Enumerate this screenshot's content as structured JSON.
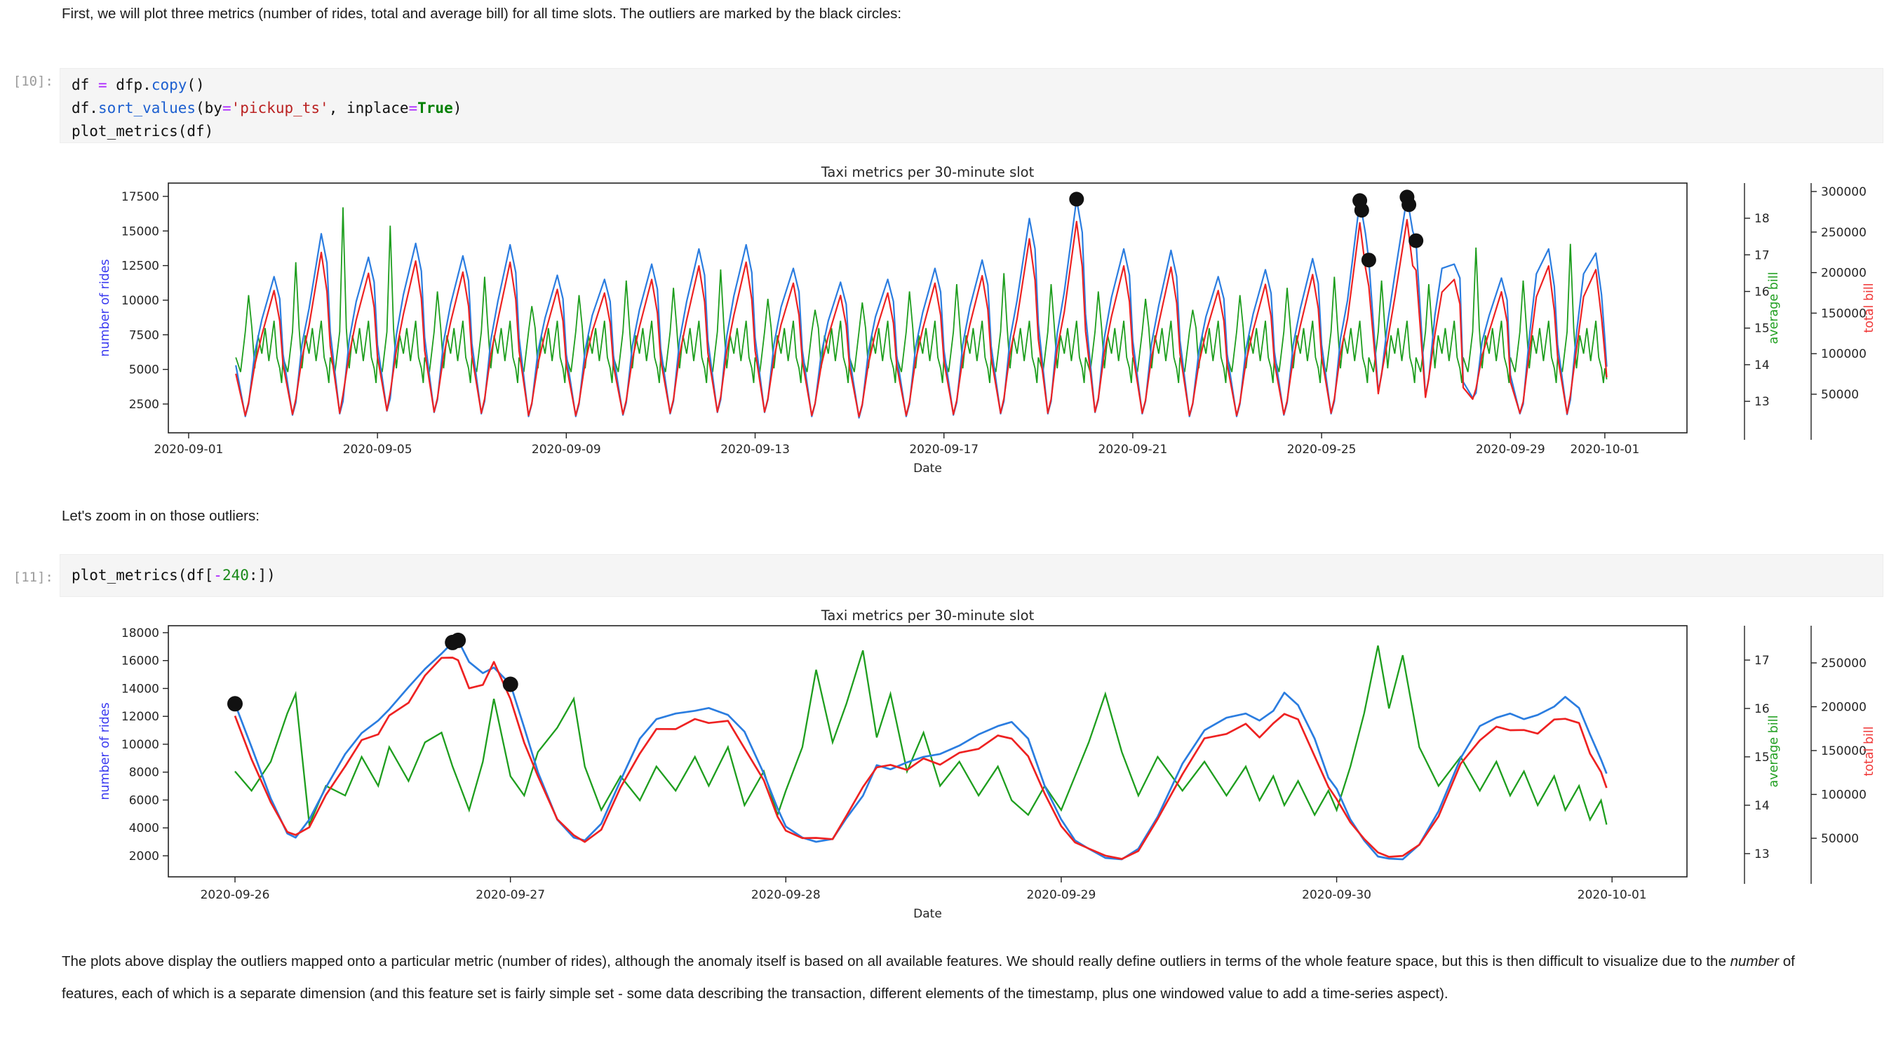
{
  "notebook": {
    "markdown_top": "First, we will plot three metrics (number of rides, total and average bill) for all time slots. The outliers are marked by the black circles:",
    "markdown_mid": "Let's zoom in on those outliers:",
    "paragraph": {
      "part1": "The plots above display the outliers mapped onto a particular metric (number of rides), although the anomaly itself is based on all available features. We should really define outliers in terms of the whole feature space, but this is then difficult to visualize due to the ",
      "italic": "number",
      "part2": " of features, each of which is a separate dimension (and this feature set is fairly simple set - some data describing the transaction, different elements of the timestamp, plus one windowed value to add a time-series aspect)."
    },
    "cells": [
      {
        "prompt": "[10]:",
        "lines": [
          [
            {
              "t": "df ",
              "c": "p"
            },
            {
              "t": "=",
              "c": "op"
            },
            {
              "t": " dfp.",
              "c": "p"
            },
            {
              "t": "copy",
              "c": "fn"
            },
            {
              "t": "()",
              "c": "p"
            }
          ],
          [
            {
              "t": "df.",
              "c": "p"
            },
            {
              "t": "sort_values",
              "c": "fn"
            },
            {
              "t": "(by",
              "c": "p"
            },
            {
              "t": "=",
              "c": "op"
            },
            {
              "t": "'pickup_ts'",
              "c": "s"
            },
            {
              "t": ", inplace",
              "c": "p"
            },
            {
              "t": "=",
              "c": "op"
            },
            {
              "t": "True",
              "c": "kw"
            },
            {
              "t": ")",
              "c": "p"
            }
          ],
          [
            {
              "t": "plot_metrics(df)",
              "c": "p"
            }
          ]
        ]
      },
      {
        "prompt": "[11]:",
        "lines": [
          [
            {
              "t": "plot_metrics(df[",
              "c": "p"
            },
            {
              "t": "-",
              "c": "op"
            },
            {
              "t": "240",
              "c": "n"
            },
            {
              "t": ":])",
              "c": "p"
            }
          ]
        ]
      }
    ]
  },
  "chart_data": [
    {
      "type": "line",
      "title": "Taxi metrics per 30-minute slot",
      "xlabel": "Date",
      "series_labels": {
        "rides": "number of rides",
        "avg": "average bill",
        "total": "total bill"
      },
      "colors": {
        "rides": "#2b7de0",
        "avg": "#1e9e1e",
        "total": "#ee2222",
        "outlier": "#111111",
        "tick": "#262626"
      },
      "x_unit": "days since 2020-09-01 00:00",
      "xlim": [
        -0.43,
        31.74
      ],
      "x_ticks": [
        {
          "o": 0,
          "label": "2020-09-01"
        },
        {
          "o": 4,
          "label": "2020-09-05"
        },
        {
          "o": 8,
          "label": "2020-09-09"
        },
        {
          "o": 12,
          "label": "2020-09-13"
        },
        {
          "o": 16,
          "label": "2020-09-17"
        },
        {
          "o": 20,
          "label": "2020-09-21"
        },
        {
          "o": 24,
          "label": "2020-09-25"
        },
        {
          "o": 28,
          "label": "2020-09-29"
        },
        {
          "o": 30,
          "label": "2020-10-01"
        }
      ],
      "rides_ticks": [
        2500,
        5000,
        7500,
        10000,
        12500,
        15000,
        17500
      ],
      "rides_ylim": [
        420,
        18460
      ],
      "avg_ticks": [
        13,
        14,
        15,
        16,
        17,
        18
      ],
      "avg_ylim": [
        12.14,
        18.96
      ],
      "total_ticks": [
        50000,
        100000,
        150000,
        200000,
        250000,
        300000
      ],
      "total_ylim": [
        2400,
        310400
      ],
      "total_rule": "total_bill = number_of_rides x average_bill (red line derived pointwise)",
      "sample_offsets_rides": [
        0,
        0.2,
        0.27,
        0.4,
        0.55,
        0.81,
        0.93
      ],
      "sample_offsets_avg": [
        0,
        0.1,
        0.2,
        0.27,
        0.34,
        0.4,
        0.47,
        0.55,
        0.62,
        0.7,
        0.81,
        0.87,
        0.93,
        0.97
      ],
      "avg_day_template": [
        14.2,
        13.8,
        14.9,
        null,
        15.0,
        13.9,
        14.8,
        14.3,
        15.0,
        14.1,
        15.2,
        14.2,
        13.9,
        13.5
      ],
      "avg_index_for_rides": [
        0,
        2,
        3,
        5,
        7,
        10,
        12
      ],
      "days": [
        {
          "date": "2020-09-02",
          "o": 1,
          "rides": [
            5300,
            1600,
            2500,
            6200,
            8600,
            11700,
            10100
          ],
          "avg_spike": 15.9
        },
        {
          "date": "2020-09-03",
          "o": 2,
          "rides": [
            6100,
            1700,
            2600,
            6800,
            9400,
            14800,
            12700
          ],
          "avg_spike": 16.8
        },
        {
          "date": "2020-09-04",
          "o": 3,
          "rides": [
            7700,
            1800,
            2700,
            7100,
            9900,
            13100,
            11300
          ],
          "avg_spike": 18.3
        },
        {
          "date": "2020-09-05",
          "o": 4,
          "rides": [
            6800,
            2000,
            2900,
            7500,
            10400,
            14100,
            12100
          ],
          "avg_spike": 17.8
        },
        {
          "date": "2020-09-06",
          "o": 5,
          "rides": [
            7300,
            1900,
            2800,
            7000,
            9700,
            13200,
            11400
          ],
          "avg_spike": 16.0
        },
        {
          "date": "2020-09-07",
          "o": 6,
          "rides": [
            6900,
            1800,
            2700,
            7100,
            9900,
            14000,
            12000
          ],
          "avg_spike": 16.4
        },
        {
          "date": "2020-09-08",
          "o": 7,
          "rides": [
            7300,
            1600,
            2500,
            6300,
            8700,
            11800,
            10100
          ],
          "avg_spike": 15.6
        },
        {
          "date": "2020-09-09",
          "o": 8,
          "rides": [
            6100,
            1600,
            2500,
            6400,
            8900,
            11500,
            9900
          ],
          "avg_spike": 15.9
        },
        {
          "date": "2020-09-10",
          "o": 9,
          "rides": [
            6000,
            1700,
            2600,
            6700,
            9300,
            12600,
            10800
          ],
          "avg_spike": 16.3
        },
        {
          "date": "2020-09-11",
          "o": 10,
          "rides": [
            6500,
            1800,
            2700,
            7100,
            9900,
            13700,
            11800
          ],
          "avg_spike": 16.1
        },
        {
          "date": "2020-09-12",
          "o": 11,
          "rides": [
            7100,
            1900,
            2800,
            7400,
            10300,
            14000,
            12000
          ],
          "avg_spike": 16.6
        },
        {
          "date": "2020-09-13",
          "o": 12,
          "rides": [
            7300,
            1900,
            2800,
            6800,
            9500,
            12300,
            10600
          ],
          "avg_spike": 15.8
        },
        {
          "date": "2020-09-14",
          "o": 13,
          "rides": [
            6400,
            1600,
            2500,
            6100,
            8500,
            11300,
            9700
          ],
          "avg_spike": 15.5
        },
        {
          "date": "2020-09-15",
          "o": 14,
          "rides": [
            5900,
            1500,
            2400,
            6300,
            8800,
            11500,
            9900
          ],
          "avg_spike": 15.7
        },
        {
          "date": "2020-09-16",
          "o": 15,
          "rides": [
            6000,
            1600,
            2500,
            6600,
            9100,
            12300,
            10600
          ],
          "avg_spike": 16.0
        },
        {
          "date": "2020-09-17",
          "o": 16,
          "rides": [
            6400,
            1700,
            2600,
            6800,
            9500,
            12900,
            11100
          ],
          "avg_spike": 16.2
        },
        {
          "date": "2020-09-18",
          "o": 17,
          "rides": [
            6700,
            1800,
            2700,
            7200,
            10000,
            15900,
            13700
          ],
          "avg_spike": 16.5
        },
        {
          "date": "2020-09-19",
          "o": 18,
          "rides": [
            8300,
            1800,
            2700,
            7600,
            10600,
            17300,
            14900
          ],
          "avg_spike": 16.2
        },
        {
          "date": "2020-09-20",
          "o": 19,
          "rides": [
            9000,
            1900,
            2800,
            7300,
            10200,
            13700,
            11800
          ],
          "avg_spike": 16.0
        },
        {
          "date": "2020-09-21",
          "o": 20,
          "rides": [
            7100,
            1800,
            2700,
            6900,
            9600,
            13600,
            11700
          ],
          "avg_spike": 15.8
        },
        {
          "date": "2020-09-22",
          "o": 21,
          "rides": [
            7100,
            1600,
            2500,
            6300,
            8800,
            11700,
            10100
          ],
          "avg_spike": 15.5
        },
        {
          "date": "2020-09-23",
          "o": 22,
          "rides": [
            6100,
            1600,
            2500,
            6500,
            9000,
            12200,
            10500
          ],
          "avg_spike": 15.9
        },
        {
          "date": "2020-09-24",
          "o": 23,
          "rides": [
            6300,
            1700,
            2600,
            6800,
            9400,
            13000,
            11200
          ],
          "avg_spike": 16.1
        },
        {
          "date": "2020-09-25",
          "o": 24,
          "rides": [
            6800,
            1800,
            2700,
            7200,
            10000,
            17200,
            14800
          ],
          "avg_spike": 16.4
        },
        {
          "date": "2020-09-26",
          "o": 25,
          "rides": [
            12900,
            3400,
            4600,
            8400,
            11800,
            17450,
            15000
          ],
          "avg_spike": 16.3
        },
        {
          "date": "2020-09-27",
          "o": 26,
          "rides": [
            14300,
            3100,
            4300,
            8900,
            12300,
            12600,
            11600
          ],
          "avg_spike": 16.2
        },
        {
          "date": "2020-09-28",
          "o": 27,
          "rides": [
            4100,
            2950,
            3300,
            7000,
            8900,
            11600,
            10000
          ],
          "avg_spike": 17.2
        },
        {
          "date": "2020-09-29",
          "o": 28,
          "rides": [
            4600,
            1800,
            2500,
            7300,
            11900,
            13700,
            11000
          ],
          "avg_spike": 16.3
        },
        {
          "date": "2020-09-30",
          "o": 29,
          "rides": [
            6800,
            1750,
            2800,
            7600,
            11900,
            13400,
            10400
          ],
          "avg_spike": 17.3
        }
      ],
      "tail": [
        {
          "o": 30,
          "rides": 7200,
          "avg": 13.9
        },
        {
          "o": 30.04,
          "rides": 5200,
          "avg": 13.6
        }
      ],
      "outliers": [
        {
          "o": 18.81,
          "rides": 17300
        },
        {
          "o": 24.81,
          "rides": 17200
        },
        {
          "o": 24.85,
          "rides": 16500
        },
        {
          "o": 25.0,
          "rides": 12900
        },
        {
          "o": 25.81,
          "rides": 17450
        },
        {
          "o": 25.85,
          "rides": 16900
        },
        {
          "o": 26.0,
          "rides": 14300
        }
      ]
    },
    {
      "type": "line",
      "title": "Taxi metrics per 30-minute slot",
      "xlabel": "Date",
      "series_labels": {
        "rides": "number of rides",
        "avg": "average bill",
        "total": "total bill"
      },
      "colors": {
        "rides": "#2b7de0",
        "avg": "#1e9e1e",
        "total": "#ee2222",
        "outlier": "#111111",
        "tick": "#262626"
      },
      "x_unit": "days since 2020-09-26 00:00",
      "xlim": [
        -0.242,
        5.272
      ],
      "x_ticks": [
        {
          "o": 0,
          "label": "2020-09-26"
        },
        {
          "o": 1,
          "label": "2020-09-27"
        },
        {
          "o": 2,
          "label": "2020-09-28"
        },
        {
          "o": 3,
          "label": "2020-09-29"
        },
        {
          "o": 4,
          "label": "2020-09-30"
        },
        {
          "o": 5,
          "label": "2020-10-01"
        }
      ],
      "rides_ticks": [
        2000,
        4000,
        6000,
        8000,
        10000,
        12000,
        14000,
        16000,
        18000
      ],
      "rides_ylim": [
        490,
        18500
      ],
      "avg_ticks": [
        13,
        14,
        15,
        16,
        17
      ],
      "avg_ylim": [
        12.52,
        17.71
      ],
      "total_ticks": [
        50000,
        100000,
        150000,
        200000,
        250000
      ],
      "total_ylim": [
        6000,
        292400
      ],
      "total_rule": "total_bill = number_of_rides x average_bill (red line derived pointwise)",
      "x": [
        0.0,
        0.06,
        0.13,
        0.19,
        0.22,
        0.27,
        0.33,
        0.4,
        0.46,
        0.52,
        0.56,
        0.63,
        0.69,
        0.75,
        0.79,
        0.81,
        0.85,
        0.9,
        0.94,
        1.0,
        1.05,
        1.1,
        1.17,
        1.23,
        1.27,
        1.33,
        1.4,
        1.47,
        1.53,
        1.6,
        1.67,
        1.72,
        1.79,
        1.85,
        1.92,
        1.97,
        2.0,
        2.06,
        2.11,
        2.17,
        2.22,
        2.28,
        2.33,
        2.38,
        2.44,
        2.5,
        2.56,
        2.63,
        2.7,
        2.77,
        2.82,
        2.88,
        2.94,
        3.0,
        3.05,
        3.1,
        3.16,
        3.22,
        3.28,
        3.35,
        3.44,
        3.52,
        3.6,
        3.67,
        3.72,
        3.77,
        3.81,
        3.86,
        3.92,
        3.97,
        4.0,
        4.05,
        4.1,
        4.15,
        4.19,
        4.24,
        4.3,
        4.37,
        4.45,
        4.52,
        4.58,
        4.63,
        4.68,
        4.73,
        4.79,
        4.83,
        4.88,
        4.92,
        4.96,
        4.98
      ],
      "rides": [
        12900,
        9800,
        6100,
        3600,
        3300,
        4600,
        6900,
        9300,
        10800,
        11700,
        12500,
        14100,
        15400,
        16500,
        17300,
        17450,
        15900,
        15100,
        15500,
        14300,
        11200,
        8000,
        4600,
        3300,
        3100,
        4300,
        7400,
        10400,
        11800,
        12200,
        12400,
        12600,
        12100,
        10900,
        7900,
        5400,
        4100,
        3300,
        3000,
        3200,
        4700,
        6300,
        8500,
        8200,
        8700,
        9100,
        9300,
        9900,
        10700,
        11300,
        11600,
        10400,
        7000,
        4600,
        3100,
        2500,
        1850,
        1750,
        2500,
        4800,
        8600,
        11000,
        11900,
        12200,
        11700,
        12400,
        13700,
        12800,
        10400,
        7600,
        6800,
        4600,
        3100,
        1950,
        1800,
        1750,
        2800,
        5200,
        9000,
        11300,
        11900,
        12200,
        11800,
        12100,
        12700,
        13400,
        12600,
        10700,
        8900,
        7900
      ],
      "avg": [
        14.7,
        14.3,
        14.9,
        15.9,
        16.3,
        13.6,
        14.4,
        14.2,
        15.0,
        14.4,
        15.2,
        14.5,
        15.3,
        15.5,
        14.8,
        14.5,
        13.9,
        14.9,
        16.2,
        14.6,
        14.2,
        15.1,
        15.6,
        16.2,
        14.8,
        13.9,
        14.6,
        14.1,
        14.8,
        14.3,
        15.0,
        14.4,
        15.2,
        14.0,
        14.7,
        13.8,
        14.3,
        15.2,
        16.8,
        15.3,
        16.1,
        17.2,
        15.4,
        16.3,
        14.7,
        15.5,
        14.4,
        14.9,
        14.2,
        14.8,
        14.1,
        13.8,
        14.4,
        13.9,
        14.6,
        15.3,
        16.3,
        15.1,
        14.2,
        15.0,
        14.3,
        14.9,
        14.2,
        14.8,
        14.1,
        14.6,
        14.0,
        14.5,
        13.8,
        14.3,
        13.9,
        14.8,
        15.9,
        17.3,
        16.0,
        17.1,
        15.2,
        14.4,
        15.0,
        14.3,
        14.9,
        14.2,
        14.7,
        14.0,
        14.6,
        13.9,
        14.4,
        13.7,
        14.1,
        13.6
      ],
      "outliers": [
        {
          "o": 0.0,
          "rides": 12900
        },
        {
          "o": 0.79,
          "rides": 17300
        },
        {
          "o": 0.81,
          "rides": 17450
        },
        {
          "o": 1.0,
          "rides": 14300
        }
      ]
    }
  ]
}
